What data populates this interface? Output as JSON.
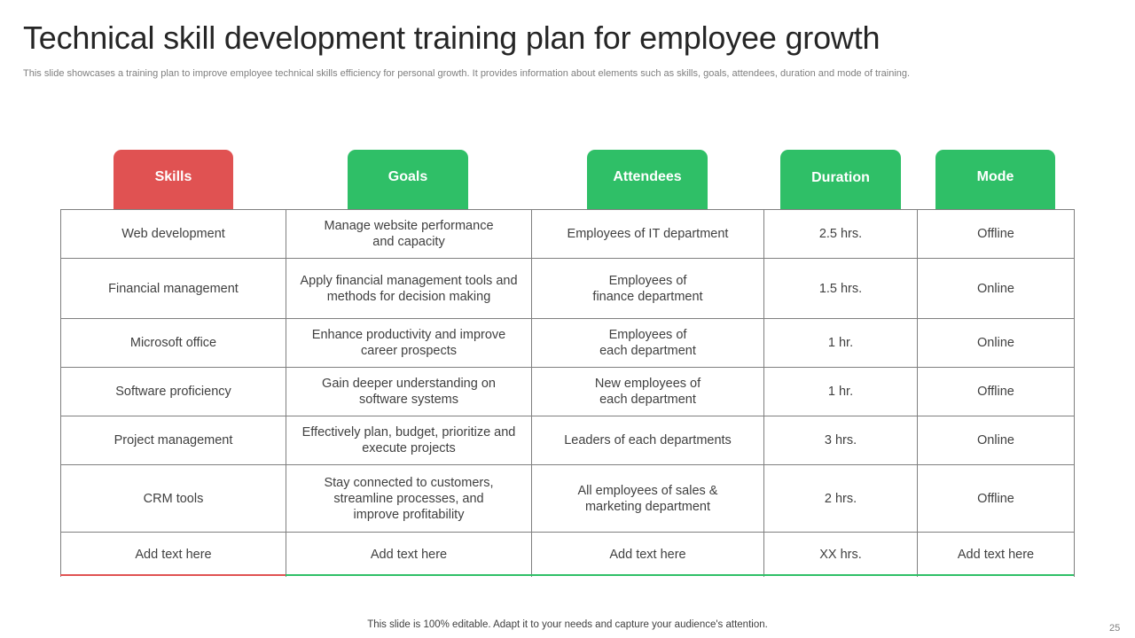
{
  "title": "Technical skill development training plan for employee growth",
  "subtitle": "This slide showcases a training plan to improve employee technical skills efficiency for personal growth. It provides information about elements such as skills, goals, attendees, duration and mode of training.",
  "colors": {
    "skills_header": "#e05252",
    "other_headers": "#2fbf67",
    "grid": "#7f7f7f"
  },
  "headers": {
    "skills": "Skills",
    "goals": "Goals",
    "attendees": "Attendees",
    "duration": "Duration",
    "mode": "Mode"
  },
  "rows": [
    {
      "skill": "Web development",
      "goal": "Manage website performance\nand capacity",
      "attendees": "Employees of IT department",
      "duration": "2.5 hrs.",
      "mode": "Offline"
    },
    {
      "skill": "Financial management",
      "goal": "Apply financial management tools and\nmethods for decision making",
      "attendees": "Employees of\nfinance department",
      "duration": "1.5 hrs.",
      "mode": "Online"
    },
    {
      "skill": "Microsoft office",
      "goal": "Enhance productivity and improve\ncareer prospects",
      "attendees": "Employees of\neach department",
      "duration": "1 hr.",
      "mode": "Online"
    },
    {
      "skill": "Software proficiency",
      "goal": "Gain deeper understanding on\nsoftware systems",
      "attendees": "New employees of\neach department",
      "duration": "1 hr.",
      "mode": "Offline"
    },
    {
      "skill": "Project management",
      "goal": "Effectively plan, budget, prioritize and\nexecute projects",
      "attendees": "Leaders of each departments",
      "duration": "3 hrs.",
      "mode": "Online"
    },
    {
      "skill": "CRM tools",
      "goal": "Stay connected to customers,\nstreamline processes, and\nimprove profitability",
      "attendees": "All employees of sales &\nmarketing department",
      "duration": "2 hrs.",
      "mode": "Offline"
    },
    {
      "skill": "Add text here",
      "goal": "Add text here",
      "attendees": "Add text here",
      "duration": "XX hrs.",
      "mode": "Add text here"
    }
  ],
  "footer": "This slide is 100% editable. Adapt it to your needs and capture your audience's attention.",
  "page_number": "25"
}
